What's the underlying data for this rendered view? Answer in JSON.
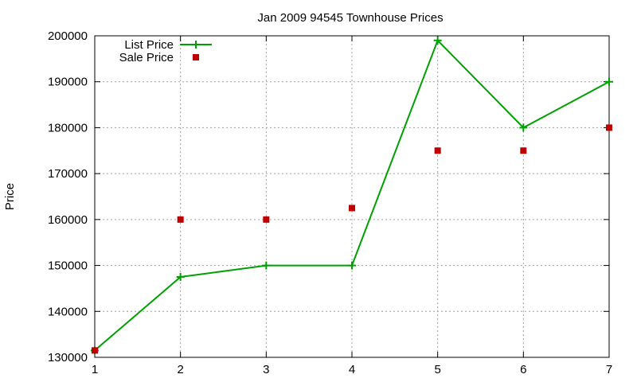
{
  "chart_data": {
    "type": "line",
    "title": "Jan 2009 94545 Townhouse Prices",
    "xlabel": "",
    "ylabel": "Price",
    "x": [
      1,
      2,
      3,
      4,
      5,
      6,
      7
    ],
    "xlim": [
      1,
      7
    ],
    "ylim": [
      130000,
      200000
    ],
    "xticks": [
      "1",
      "2",
      "3",
      "4",
      "5",
      "6",
      "7"
    ],
    "yticks": [
      "130000",
      "140000",
      "150000",
      "160000",
      "170000",
      "180000",
      "190000",
      "200000"
    ],
    "grid": true,
    "legend_position": "top-left",
    "series": [
      {
        "name": "List Price",
        "style": "line+cross",
        "color": "#00a000",
        "values": [
          131500,
          147500,
          150000,
          150000,
          199000,
          180000,
          190000
        ]
      },
      {
        "name": "Sale Price",
        "style": "square-points",
        "color": "#c00000",
        "values": [
          131500,
          160000,
          160000,
          162500,
          175000,
          175000,
          180000
        ]
      }
    ]
  }
}
